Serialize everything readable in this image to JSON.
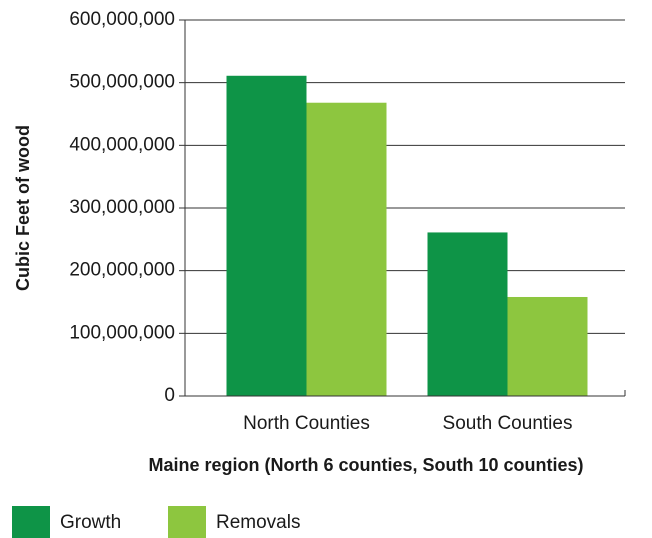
{
  "chart_data": {
    "type": "bar",
    "categories": [
      "North Counties",
      "South Counties"
    ],
    "series": [
      {
        "name": "Growth",
        "color": "#0e9447",
        "values": [
          511000000,
          261000000
        ]
      },
      {
        "name": "Removals",
        "color": "#8dc63f",
        "values": [
          468000000,
          158000000
        ]
      }
    ],
    "y_label": "Cubic Feet of wood",
    "x_label": "Maine region (North 6 counties, South 10 counties)",
    "ylim": [
      0,
      600000000
    ],
    "yticks": [
      0,
      {
        "value": 100000000,
        "label": "100,000,000"
      },
      {
        "value": 200000000,
        "label": "200,000,000"
      },
      {
        "value": 300000000,
        "label": "300,000,000"
      },
      {
        "value": 400000000,
        "label": "400,000,000"
      },
      {
        "value": 500000000,
        "label": "500,000,000"
      },
      {
        "value": 600000000,
        "label": "600,000,000"
      }
    ],
    "grid": true
  }
}
